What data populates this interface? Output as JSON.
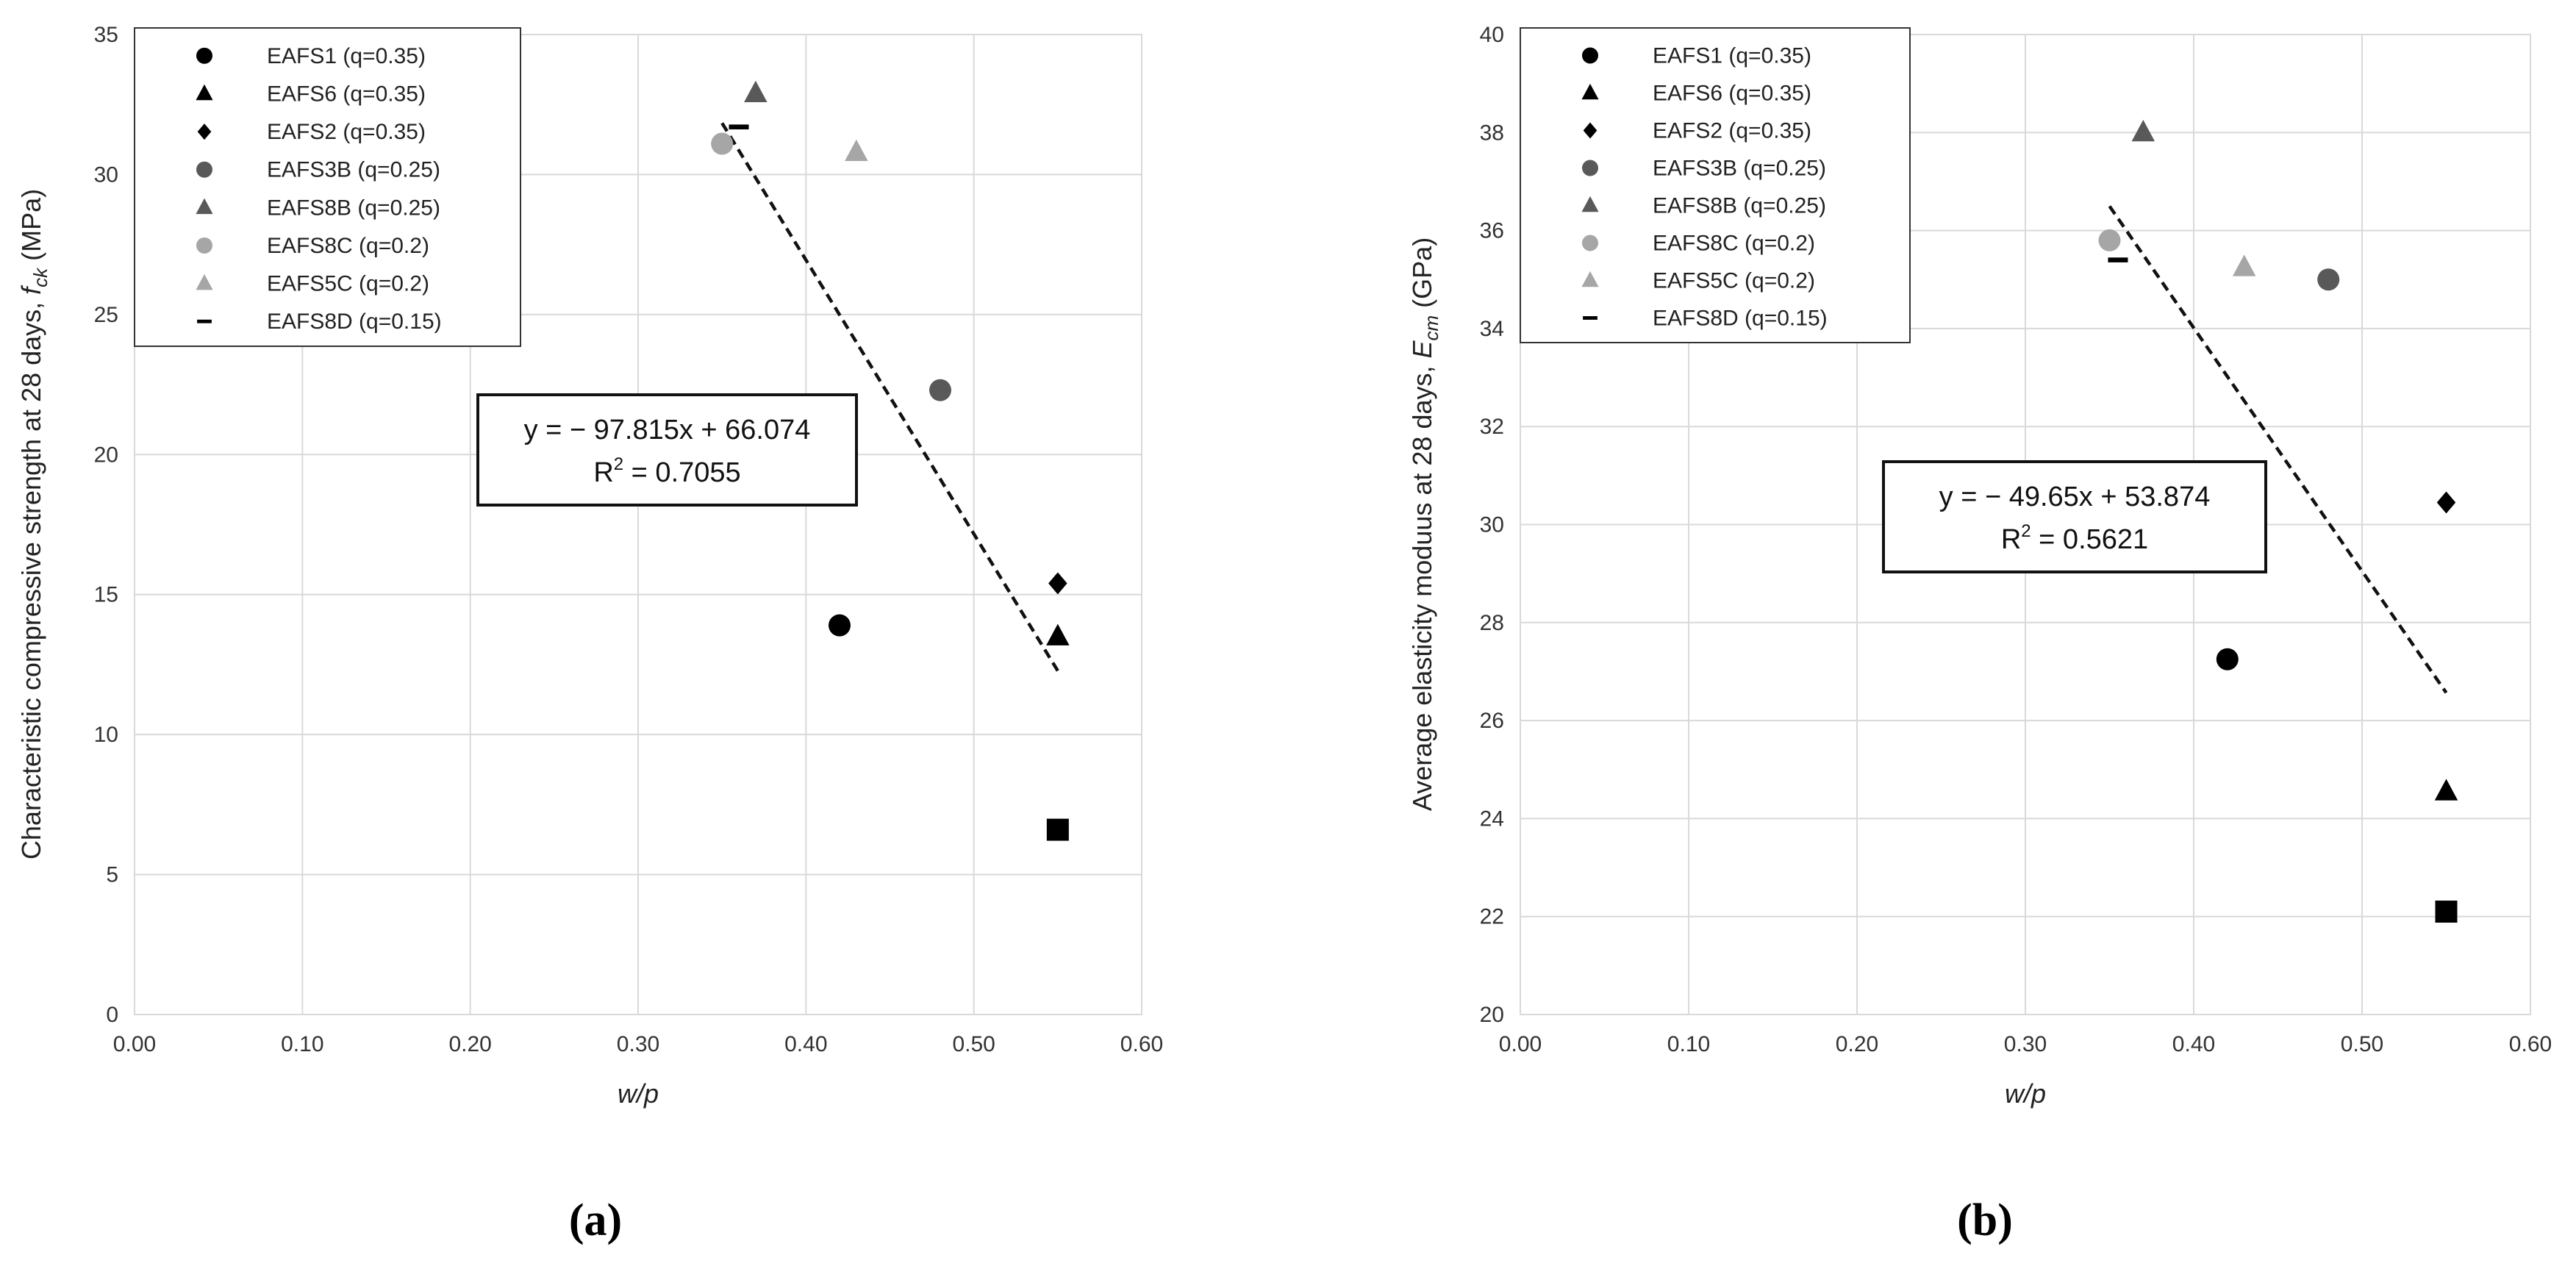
{
  "chart_data": [
    {
      "type": "scatter",
      "panel_label_open": "(",
      "panel_label": "a",
      "panel_label_close": ")",
      "xlabel": "w/p",
      "ylabel_text": "Characteristic compressive strength at 28 days, ",
      "ylabel_symbol": "f",
      "ylabel_subscript": "ck",
      "ylabel_unit": " (MPa)",
      "xlim": [
        0,
        0.6
      ],
      "ylim": [
        0,
        35
      ],
      "xticks": [
        "0.00",
        "0.10",
        "0.20",
        "0.30",
        "0.40",
        "0.50",
        "0.60"
      ],
      "yticks": [
        "0",
        "5",
        "10",
        "15",
        "20",
        "25",
        "30",
        "35"
      ],
      "grid": true,
      "legend_position": "top-left",
      "series": [
        {
          "name": "EAFS1 (q=0.35)",
          "marker": "circle",
          "color": "#000000",
          "x": [
            0.42
          ],
          "y": [
            13.9
          ]
        },
        {
          "name": "EAFS6 (q=0.35)",
          "marker": "triangle",
          "color": "#000000",
          "x": [
            0.55
          ],
          "y": [
            13.5
          ]
        },
        {
          "name": "EAFS2 (q=0.35)",
          "marker": "diamond",
          "color": "#000000",
          "x": [
            0.55
          ],
          "y": [
            15.4
          ]
        },
        {
          "name": "EAFS3B (q=0.25)",
          "marker": "circle",
          "color": "#595959",
          "x": [
            0.48
          ],
          "y": [
            22.3
          ]
        },
        {
          "name": "EAFS8B (q=0.25)",
          "marker": "triangle",
          "color": "#595959",
          "x": [
            0.37
          ],
          "y": [
            32.9
          ]
        },
        {
          "name": "EAFS8C (q=0.2)",
          "marker": "circle",
          "color": "#a6a6a6",
          "x": [
            0.35
          ],
          "y": [
            31.1
          ]
        },
        {
          "name": "EAFS5C (q=0.2)",
          "marker": "triangle",
          "color": "#a6a6a6",
          "x": [
            0.43
          ],
          "y": [
            30.8
          ]
        },
        {
          "name": "EAFS8D (q=0.15)",
          "marker": "dash",
          "color": "#000000",
          "x": [
            0.36
          ],
          "y": [
            31.7
          ]
        },
        {
          "name": "",
          "marker": "square",
          "color": "#000000",
          "x": [
            0.55
          ],
          "y": [
            6.6
          ]
        }
      ],
      "trendline": {
        "slope": -97.815,
        "intercept": 66.074,
        "x_range": [
          0.35,
          0.55
        ],
        "style": "dashed"
      },
      "equation": "y = − 97.815x + 66.074",
      "r2_label": "R",
      "r2_value": " = 0.7055"
    },
    {
      "type": "scatter",
      "panel_label_open": "(",
      "panel_label": "b",
      "panel_label_close": ")",
      "xlabel": "w/p",
      "ylabel_text": "Average elasticity moduus at 28 days, ",
      "ylabel_symbol": "E",
      "ylabel_subscript": "cm",
      "ylabel_unit": "  (GPa)",
      "xlim": [
        0,
        0.6
      ],
      "ylim": [
        20,
        40
      ],
      "xticks": [
        "0.00",
        "0.10",
        "0.20",
        "0.30",
        "0.40",
        "0.50",
        "0.60"
      ],
      "yticks": [
        "20",
        "22",
        "24",
        "26",
        "28",
        "30",
        "32",
        "34",
        "36",
        "38",
        "40"
      ],
      "grid": true,
      "legend_position": "top-left",
      "series": [
        {
          "name": "EAFS1 (q=0.35)",
          "marker": "circle",
          "color": "#000000",
          "x": [
            0.42
          ],
          "y": [
            27.25
          ]
        },
        {
          "name": "EAFS6 (q=0.35)",
          "marker": "triangle",
          "color": "#000000",
          "x": [
            0.55
          ],
          "y": [
            24.55
          ]
        },
        {
          "name": "EAFS2 (q=0.35)",
          "marker": "diamond",
          "color": "#000000",
          "x": [
            0.55
          ],
          "y": [
            30.45
          ]
        },
        {
          "name": "EAFS3B (q=0.25)",
          "marker": "circle",
          "color": "#595959",
          "x": [
            0.48
          ],
          "y": [
            35.0
          ]
        },
        {
          "name": "EAFS8B (q=0.25)",
          "marker": "triangle",
          "color": "#595959",
          "x": [
            0.37
          ],
          "y": [
            38.0
          ]
        },
        {
          "name": "EAFS8C (q=0.2)",
          "marker": "circle",
          "color": "#a6a6a6",
          "x": [
            0.35
          ],
          "y": [
            35.8
          ]
        },
        {
          "name": "EAFS5C (q=0.2)",
          "marker": "triangle",
          "color": "#a6a6a6",
          "x": [
            0.43
          ],
          "y": [
            35.25
          ]
        },
        {
          "name": "EAFS8D (q=0.15)",
          "marker": "dash",
          "color": "#000000",
          "x": [
            0.355
          ],
          "y": [
            35.4
          ]
        },
        {
          "name": "",
          "marker": "square",
          "color": "#000000",
          "x": [
            0.55
          ],
          "y": [
            22.1
          ]
        }
      ],
      "trendline": {
        "slope": -49.65,
        "intercept": 53.874,
        "x_range": [
          0.35,
          0.55
        ],
        "style": "dashed"
      },
      "equation": "y = − 49.65x + 53.874",
      "r2_label": "R",
      "r2_value": " = 0.5621"
    }
  ]
}
